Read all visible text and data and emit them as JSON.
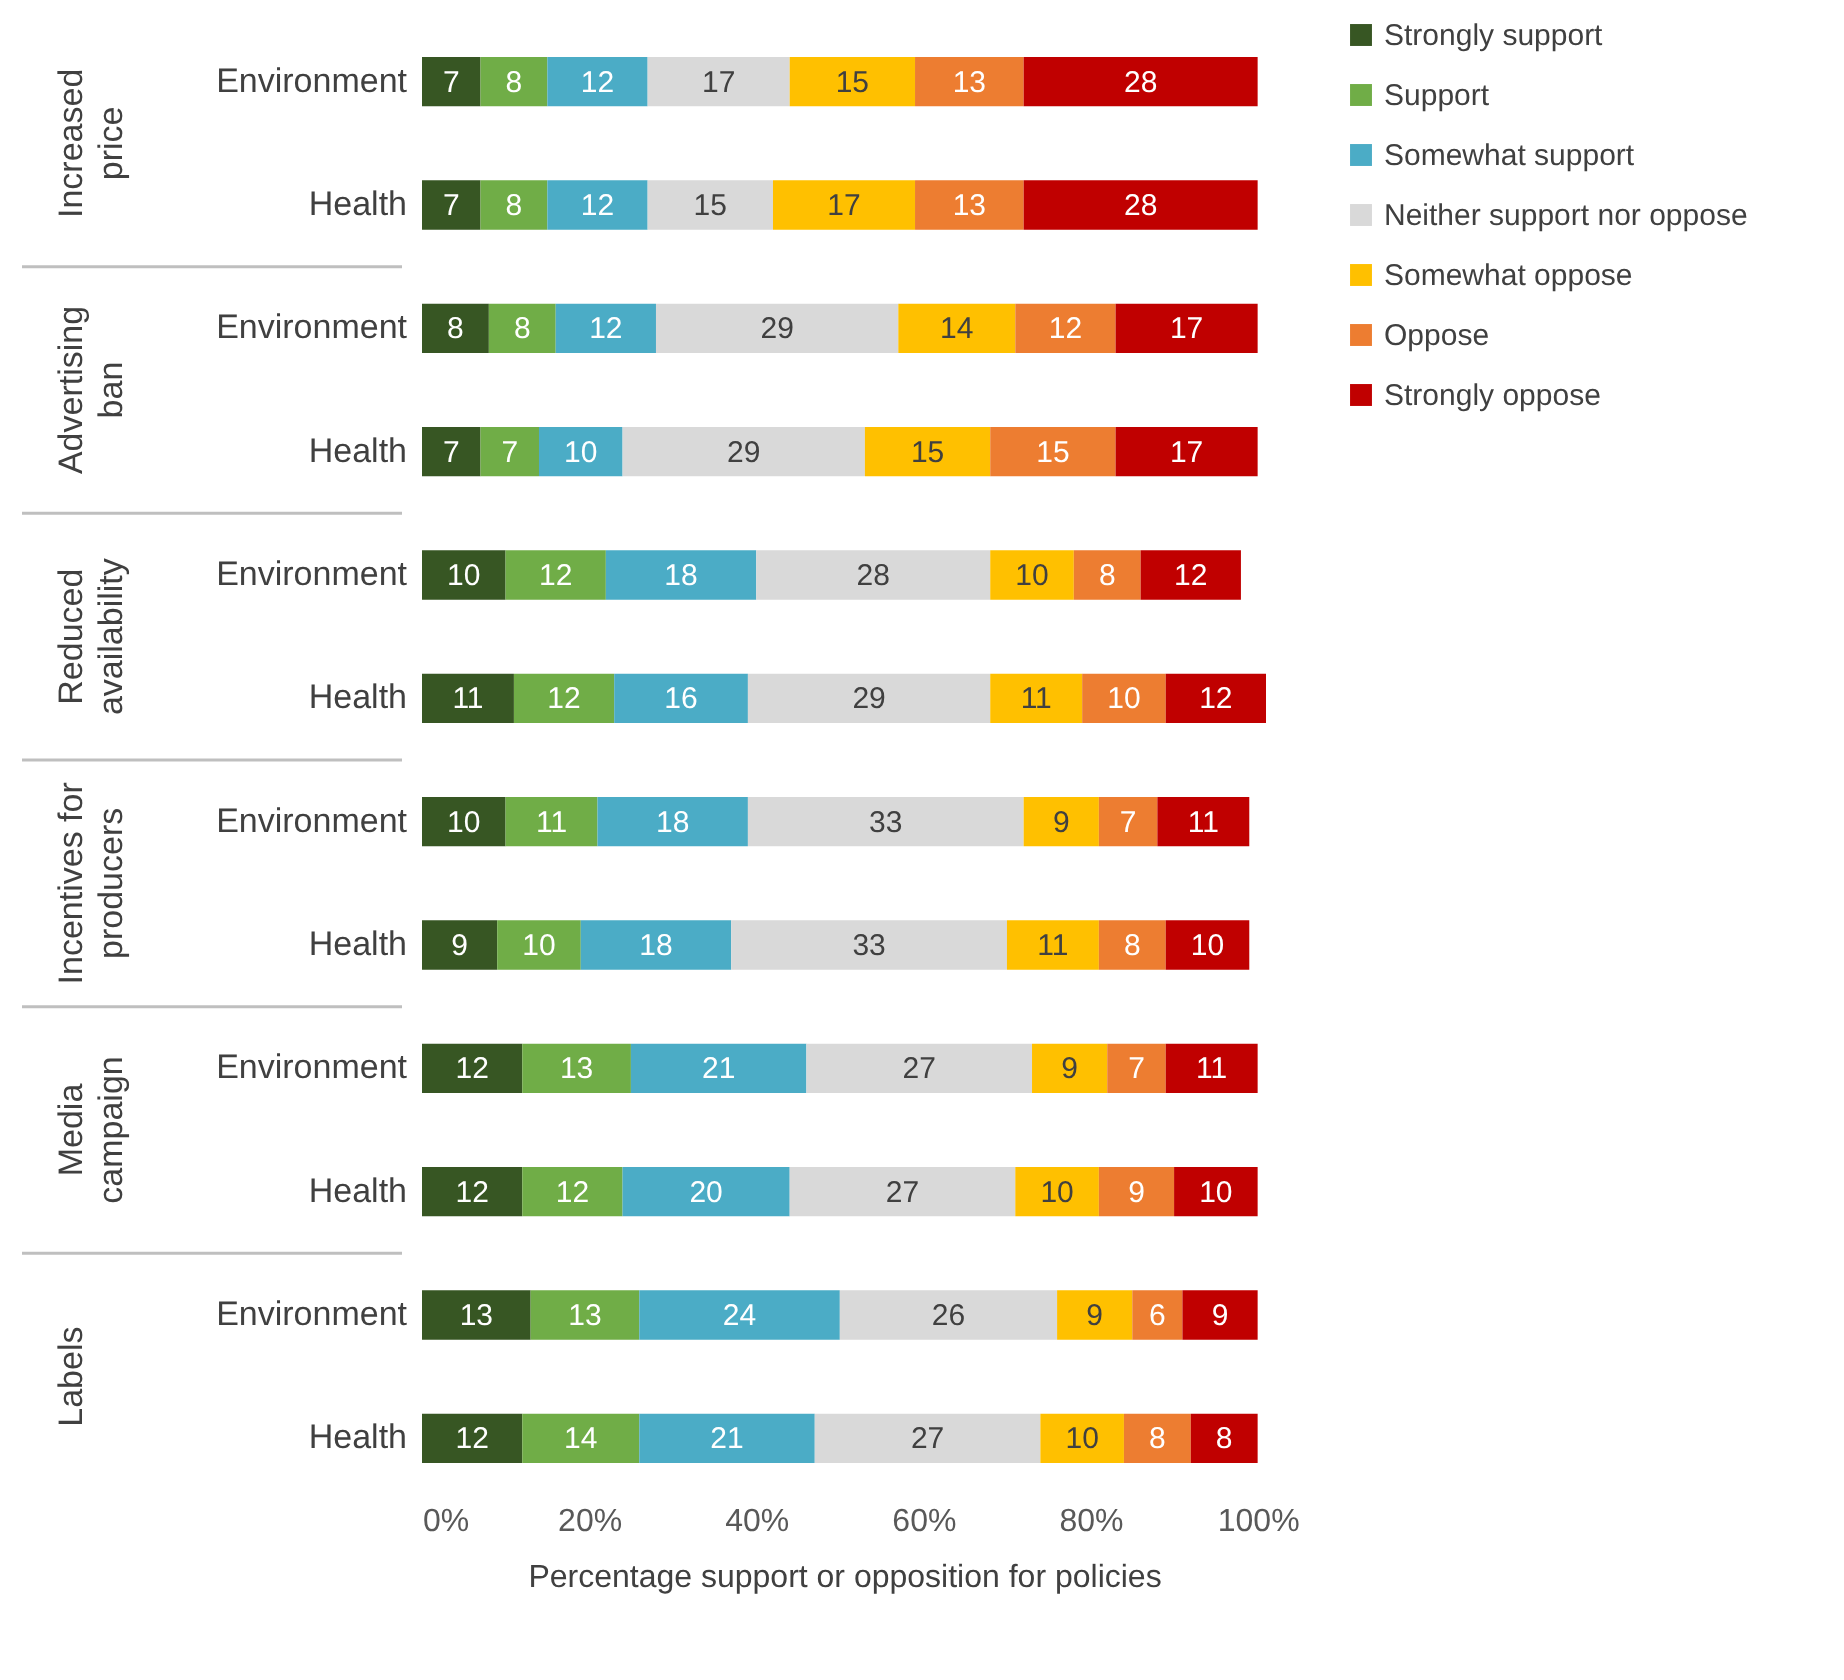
{
  "chart_data": {
    "type": "bar",
    "orientation": "horizontal",
    "stacked": true,
    "data_labels": true,
    "legend": "right",
    "grid": false,
    "xlabel": "Percentage support or opposition for policies",
    "categories": [
      "Environment",
      "Health",
      "Environment",
      "Health",
      "Environment",
      "Health",
      "Environment",
      "Health",
      "Environment",
      "Health",
      "Environment",
      "Health"
    ],
    "annotations": [
      "Increased price",
      "Advertising ban",
      "Reduced availability",
      "Incentives for producers",
      "Media campaign",
      "Labels"
    ],
    "xlim": [
      0,
      101
    ],
    "xticks": [
      {
        "value": 0,
        "label": "0%"
      },
      {
        "value": 20,
        "label": "20%"
      },
      {
        "value": 40,
        "label": "40%"
      },
      {
        "value": 60,
        "label": "60%"
      },
      {
        "value": 80,
        "label": "80%"
      },
      {
        "value": 100,
        "label": "100%"
      }
    ],
    "series": [
      {
        "name": "Strongly support",
        "color": "#375623",
        "values": [
          7,
          7,
          8,
          7,
          10,
          11,
          10,
          9,
          12,
          12,
          13,
          12
        ]
      },
      {
        "name": "Support",
        "color": "#70ad47",
        "values": [
          8,
          8,
          8,
          7,
          12,
          12,
          11,
          10,
          13,
          12,
          13,
          14
        ]
      },
      {
        "name": "Somewhat support",
        "color": "#4bacc6",
        "values": [
          12,
          12,
          12,
          10,
          18,
          16,
          18,
          18,
          21,
          20,
          24,
          21
        ]
      },
      {
        "name": "Neither support nor oppose",
        "color": "#d9d9d9",
        "values": [
          17,
          15,
          29,
          29,
          28,
          29,
          33,
          33,
          27,
          27,
          26,
          27
        ]
      },
      {
        "name": "Somewhat oppose",
        "color": "#ffc000",
        "values": [
          15,
          17,
          14,
          15,
          10,
          11,
          9,
          11,
          9,
          10,
          9,
          10
        ]
      },
      {
        "name": "Oppose",
        "color": "#ed7d31",
        "values": [
          13,
          13,
          12,
          15,
          8,
          10,
          7,
          8,
          7,
          9,
          6,
          8
        ]
      },
      {
        "name": "Strongly oppose",
        "color": "#c00000",
        "values": [
          28,
          28,
          17,
          17,
          12,
          12,
          11,
          10,
          11,
          10,
          9,
          8
        ]
      }
    ]
  }
}
